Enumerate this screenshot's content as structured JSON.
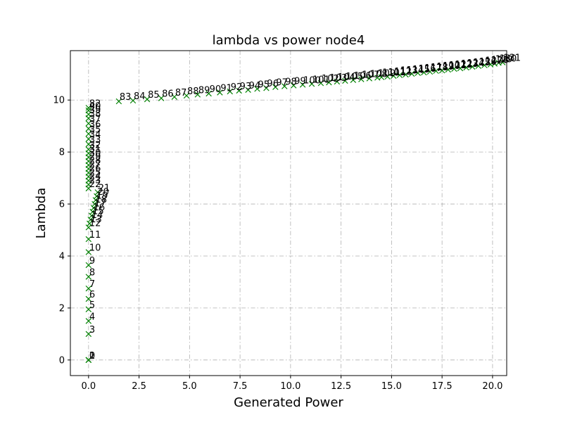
{
  "chart_data": {
    "type": "scatter",
    "title": "lambda vs power node4",
    "xlabel": "Generated Power",
    "ylabel": "Lambda",
    "xlim": [
      -0.9,
      20.7
    ],
    "ylim": [
      -0.6,
      11.9
    ],
    "xticks": [
      0,
      2.5,
      5,
      7.5,
      10,
      12.5,
      15,
      17.5,
      20
    ],
    "xtick_labels": [
      "0.0",
      "2.5",
      "5.0",
      "7.5",
      "10.0",
      "12.5",
      "15.0",
      "17.5",
      "20.0"
    ],
    "yticks": [
      0,
      2,
      4,
      6,
      8,
      10
    ],
    "ytick_labels": [
      "0",
      "2",
      "4",
      "6",
      "8",
      "10"
    ],
    "grid": true,
    "marker": "x",
    "color": "#008000",
    "series": [
      {
        "points": [
          {
            "x": 0.0,
            "y": 0.0,
            "label": "0"
          },
          {
            "x": 0.0,
            "y": 0.0,
            "label": "1"
          },
          {
            "x": 0.0,
            "y": 0.0,
            "label": "2"
          },
          {
            "x": 0.0,
            "y": 1.0,
            "label": "3"
          },
          {
            "x": 0.0,
            "y": 1.5,
            "label": "4"
          },
          {
            "x": 0.0,
            "y": 1.95,
            "label": "5"
          },
          {
            "x": 0.0,
            "y": 2.35,
            "label": "6"
          },
          {
            "x": 0.0,
            "y": 2.75,
            "label": "7"
          },
          {
            "x": 0.0,
            "y": 3.2,
            "label": "8"
          },
          {
            "x": 0.0,
            "y": 3.65,
            "label": "9"
          },
          {
            "x": 0.0,
            "y": 4.15,
            "label": "10"
          },
          {
            "x": 0.0,
            "y": 4.65,
            "label": "11"
          },
          {
            "x": 0.0,
            "y": 5.1,
            "label": "12"
          },
          {
            "x": 0.05,
            "y": 5.25,
            "label": "13"
          },
          {
            "x": 0.1,
            "y": 5.4,
            "label": "14"
          },
          {
            "x": 0.15,
            "y": 5.55,
            "label": "15"
          },
          {
            "x": 0.2,
            "y": 5.7,
            "label": "16"
          },
          {
            "x": 0.25,
            "y": 5.85,
            "label": "17"
          },
          {
            "x": 0.3,
            "y": 6.0,
            "label": "18"
          },
          {
            "x": 0.35,
            "y": 6.15,
            "label": "19"
          },
          {
            "x": 0.4,
            "y": 6.3,
            "label": "20"
          },
          {
            "x": 0.45,
            "y": 6.45,
            "label": "21"
          },
          {
            "x": 0.0,
            "y": 6.6,
            "label": "22"
          },
          {
            "x": 0.0,
            "y": 6.75,
            "label": "23"
          },
          {
            "x": 0.0,
            "y": 6.9,
            "label": "24"
          },
          {
            "x": 0.0,
            "y": 7.05,
            "label": "25"
          },
          {
            "x": 0.0,
            "y": 7.2,
            "label": "26"
          },
          {
            "x": 0.0,
            "y": 7.35,
            "label": "27"
          },
          {
            "x": 0.0,
            "y": 7.5,
            "label": "28"
          },
          {
            "x": 0.0,
            "y": 7.65,
            "label": "29"
          },
          {
            "x": 0.0,
            "y": 7.8,
            "label": "30"
          },
          {
            "x": 0.0,
            "y": 7.95,
            "label": "31"
          },
          {
            "x": 0.0,
            "y": 8.1,
            "label": "32"
          },
          {
            "x": 0.0,
            "y": 8.3,
            "label": "33"
          },
          {
            "x": 0.0,
            "y": 8.5,
            "label": "34"
          },
          {
            "x": 0.0,
            "y": 8.7,
            "label": "35"
          },
          {
            "x": 0.0,
            "y": 8.9,
            "label": "36"
          },
          {
            "x": 0.0,
            "y": 9.1,
            "label": "37"
          },
          {
            "x": 0.0,
            "y": 9.3,
            "label": "38"
          },
          {
            "x": 0.0,
            "y": 9.45,
            "label": "39"
          },
          {
            "x": 0.0,
            "y": 9.6,
            "label": "40"
          },
          {
            "x": 0.0,
            "y": 9.7,
            "label": "82"
          },
          {
            "x": 1.5,
            "y": 9.95,
            "label": "83"
          },
          {
            "x": 2.2,
            "y": 9.98,
            "label": "84"
          },
          {
            "x": 2.9,
            "y": 10.03,
            "label": "85"
          },
          {
            "x": 3.6,
            "y": 10.07,
            "label": "86"
          },
          {
            "x": 4.25,
            "y": 10.12,
            "label": "87"
          },
          {
            "x": 4.85,
            "y": 10.17,
            "label": "88"
          },
          {
            "x": 5.4,
            "y": 10.21,
            "label": "89"
          },
          {
            "x": 5.95,
            "y": 10.25,
            "label": "90"
          },
          {
            "x": 6.5,
            "y": 10.29,
            "label": "91"
          },
          {
            "x": 7.0,
            "y": 10.33,
            "label": "92"
          },
          {
            "x": 7.45,
            "y": 10.36,
            "label": "93"
          },
          {
            "x": 7.9,
            "y": 10.39,
            "label": "94"
          },
          {
            "x": 8.35,
            "y": 10.43,
            "label": "95"
          },
          {
            "x": 8.8,
            "y": 10.46,
            "label": "96"
          },
          {
            "x": 9.25,
            "y": 10.5,
            "label": "97"
          },
          {
            "x": 9.7,
            "y": 10.53,
            "label": "98"
          },
          {
            "x": 10.15,
            "y": 10.56,
            "label": "99"
          },
          {
            "x": 10.6,
            "y": 10.59,
            "label": "100"
          },
          {
            "x": 11.05,
            "y": 10.62,
            "label": "101"
          },
          {
            "x": 11.5,
            "y": 10.65,
            "label": "102"
          },
          {
            "x": 11.9,
            "y": 10.68,
            "label": "103"
          },
          {
            "x": 12.3,
            "y": 10.71,
            "label": "104"
          },
          {
            "x": 12.7,
            "y": 10.74,
            "label": "105"
          },
          {
            "x": 13.1,
            "y": 10.77,
            "label": "106"
          },
          {
            "x": 13.5,
            "y": 10.8,
            "label": "107"
          },
          {
            "x": 13.9,
            "y": 10.83,
            "label": "108"
          },
          {
            "x": 14.3,
            "y": 10.86,
            "label": "109"
          },
          {
            "x": 14.5,
            "y": 10.88,
            "label": "110"
          },
          {
            "x": 14.8,
            "y": 10.9,
            "label": "111"
          },
          {
            "x": 15.1,
            "y": 10.93,
            "label": "112"
          },
          {
            "x": 15.4,
            "y": 10.96,
            "label": "113"
          },
          {
            "x": 15.7,
            "y": 10.98,
            "label": "114"
          },
          {
            "x": 16.0,
            "y": 11.01,
            "label": "115"
          },
          {
            "x": 16.3,
            "y": 11.04,
            "label": "116"
          },
          {
            "x": 16.6,
            "y": 11.06,
            "label": "117"
          },
          {
            "x": 16.9,
            "y": 11.09,
            "label": "118"
          },
          {
            "x": 17.2,
            "y": 11.12,
            "label": "119"
          },
          {
            "x": 17.5,
            "y": 11.14,
            "label": "120"
          },
          {
            "x": 17.8,
            "y": 11.17,
            "label": "121"
          },
          {
            "x": 18.1,
            "y": 11.2,
            "label": "122"
          },
          {
            "x": 18.4,
            "y": 11.22,
            "label": "123"
          },
          {
            "x": 18.7,
            "y": 11.25,
            "label": "124"
          },
          {
            "x": 19.0,
            "y": 11.28,
            "label": "125"
          },
          {
            "x": 19.3,
            "y": 11.31,
            "label": "126"
          },
          {
            "x": 19.6,
            "y": 11.34,
            "label": "127"
          },
          {
            "x": 19.9,
            "y": 11.37,
            "label": "128"
          },
          {
            "x": 20.1,
            "y": 11.4,
            "label": "129"
          },
          {
            "x": 20.3,
            "y": 11.43,
            "label": "130"
          },
          {
            "x": 20.5,
            "y": 11.45,
            "label": "131"
          }
        ]
      }
    ]
  }
}
